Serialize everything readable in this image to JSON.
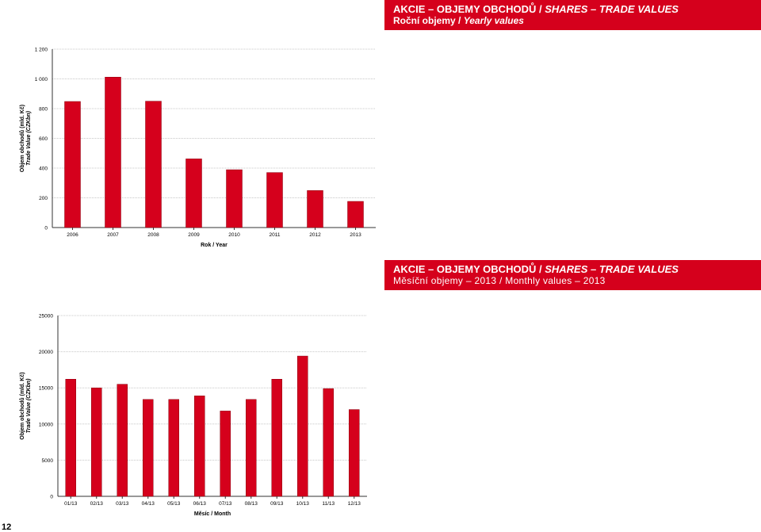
{
  "banner_top": {
    "title_plain": "AKCIE – OBJEMY OBCHODŮ / ",
    "title_italic": "SHARES – TRADE VALUES",
    "subtitle_plain": "Roční objemy / ",
    "subtitle_italic": "Yearly values"
  },
  "banner_mid": {
    "title_plain": "AKCIE – OBJEMY OBCHODŮ / ",
    "title_italic": "SHARES – TRADE VALUES",
    "subtitle": "Měsíční objemy – 2013 / Monthly values – 2013"
  },
  "page_number": "12",
  "colors": {
    "accent": "#d5001c",
    "bar": "#d5001c",
    "grid": "#c8c8c8"
  },
  "chart_data": [
    {
      "type": "bar",
      "categories": [
        "2006",
        "2007",
        "2008",
        "2009",
        "2010",
        "2011",
        "2012",
        "2013"
      ],
      "values": [
        848,
        1012,
        850,
        462,
        389,
        370,
        249,
        176
      ],
      "ylabel": "Objem obchodů (mld. Kč)",
      "ylabel2": "Trade Value (CZKbn)",
      "xlabel": "Rok / Year",
      "ylim": [
        0,
        1200
      ],
      "yticks": [
        0,
        200,
        400,
        600,
        800,
        1000,
        1200
      ],
      "ytick_labels": [
        "0",
        "200",
        "400",
        "600",
        "800",
        "1 000",
        "1 200"
      ],
      "grid": true
    },
    {
      "type": "bar",
      "categories": [
        "01/13",
        "02/13",
        "03/13",
        "04/13",
        "05/13",
        "06/13",
        "07/13",
        "08/13",
        "09/13",
        "10/13",
        "11/13",
        "12/13"
      ],
      "values": [
        16200,
        15000,
        15500,
        13400,
        13400,
        13900,
        11800,
        13400,
        16200,
        19400,
        14900,
        12000
      ],
      "ylabel": "Objem obchodů (mld. Kč)",
      "ylabel2": "Trade Value (CZKbn)",
      "xlabel": "Měsíc / Month",
      "ylim": [
        0,
        25000
      ],
      "yticks": [
        0,
        5000,
        10000,
        15000,
        20000,
        25000
      ],
      "ytick_labels": [
        "0",
        "5000",
        "10000",
        "15000",
        "20000",
        "25000"
      ],
      "grid": true
    }
  ]
}
